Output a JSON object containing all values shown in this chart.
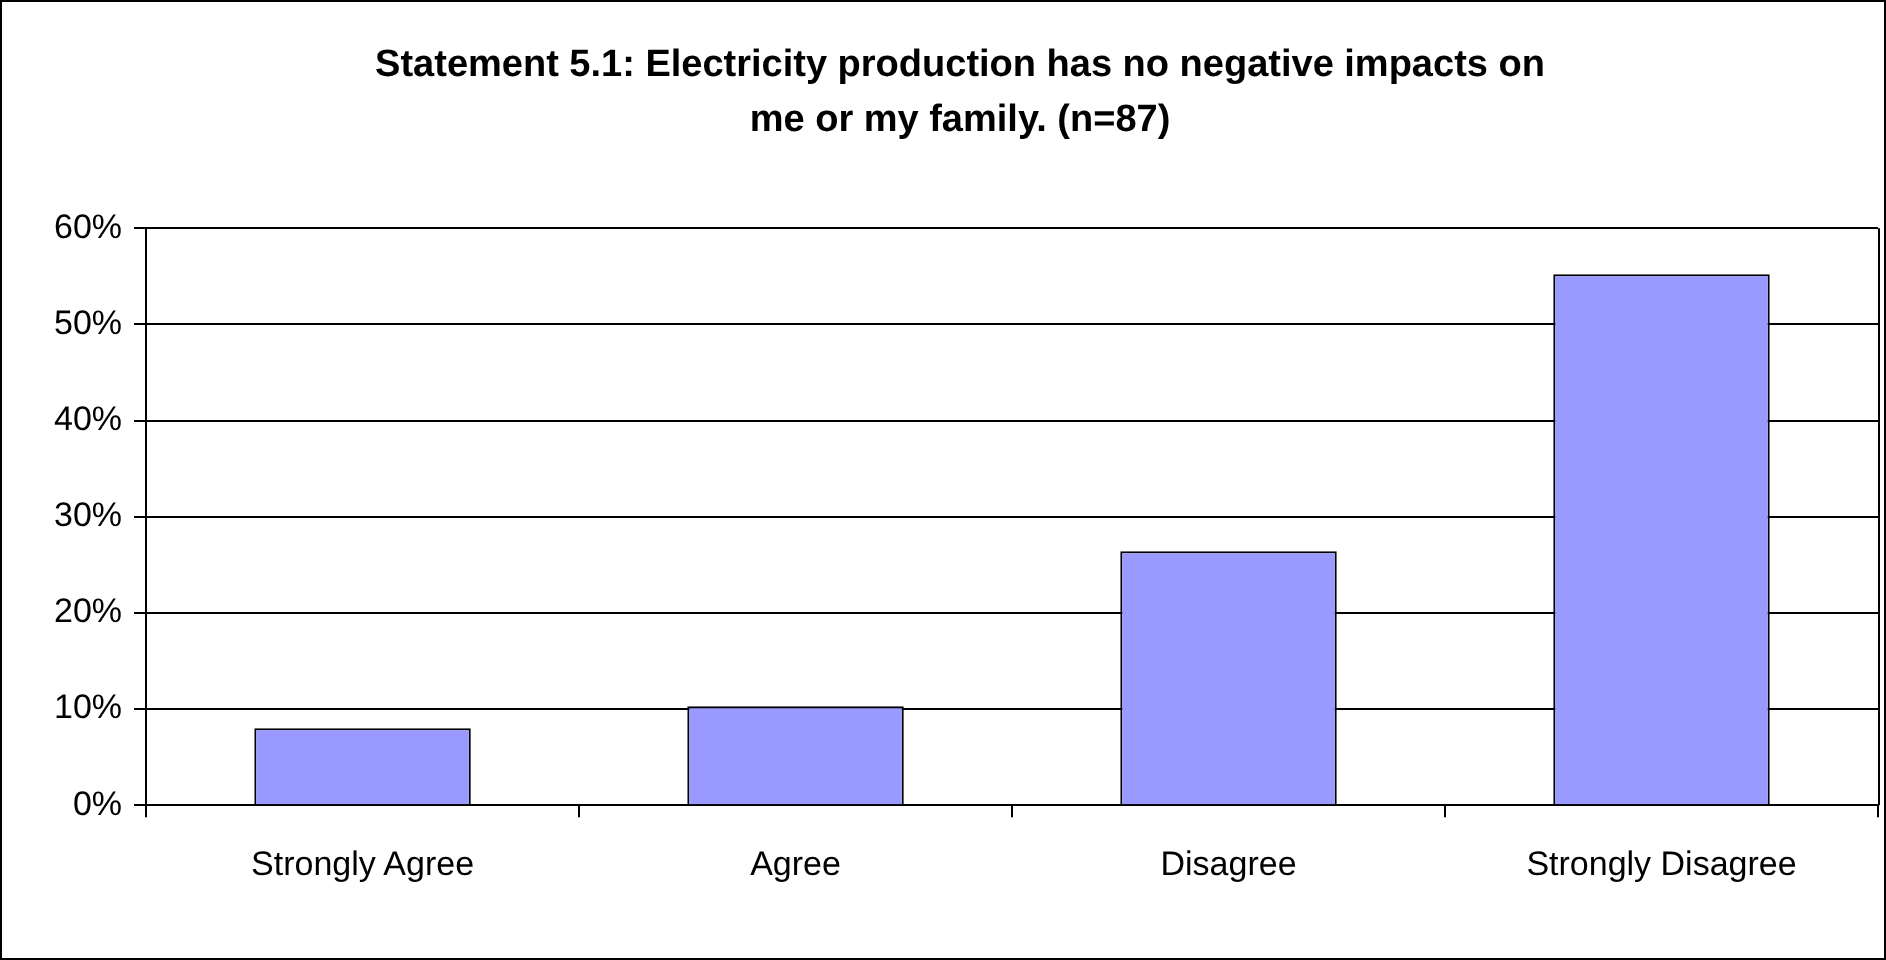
{
  "chart_data": {
    "type": "bar",
    "title": "Statement 5.1: Electricity production has no negative impacts on me or my family. (n=87)",
    "categories": [
      "Strongly Agree",
      "Agree",
      "Disagree",
      "Strongly Disagree"
    ],
    "values": [
      8,
      10.3,
      26.4,
      55.2
    ],
    "color": "#9999ff",
    "ylim": [
      0,
      60
    ],
    "yticks": [
      {
        "value": 0,
        "label": "0%"
      },
      {
        "value": 10,
        "label": "10%"
      },
      {
        "value": 20,
        "label": "20%"
      },
      {
        "value": 30,
        "label": "30%"
      },
      {
        "value": 40,
        "label": "40%"
      },
      {
        "value": 50,
        "label": "50%"
      },
      {
        "value": 60,
        "label": "60%"
      }
    ],
    "grid": "y",
    "legend": false
  }
}
